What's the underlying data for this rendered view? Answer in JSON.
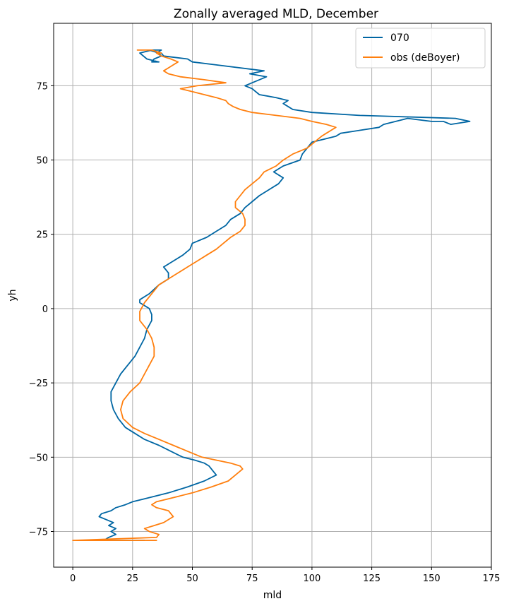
{
  "chart_data": {
    "type": "line",
    "title": "Zonally averaged MLD, December",
    "xlabel": "mld",
    "ylabel": "yh",
    "xlim": [
      -8,
      175
    ],
    "ylim": [
      -87,
      96
    ],
    "xticks": [
      0,
      25,
      50,
      75,
      100,
      125,
      150,
      175
    ],
    "yticks": [
      -75,
      -50,
      -25,
      0,
      25,
      50,
      75
    ],
    "xtick_labels": [
      "0",
      "25",
      "50",
      "75",
      "100",
      "125",
      "150",
      "175"
    ],
    "ytick_labels": [
      "−75",
      "−50",
      "−25",
      "0",
      "25",
      "50",
      "75"
    ],
    "grid": true,
    "legend_position": "top-right",
    "series": [
      {
        "name": "070",
        "color": "#0066a3",
        "x": [
          30,
          13,
          15,
          18,
          16,
          18,
          15,
          17,
          14,
          11,
          12,
          16,
          18,
          22,
          25,
          30,
          40,
          48,
          55,
          60,
          59,
          57,
          55,
          51,
          46,
          41,
          36,
          30,
          26,
          22,
          19,
          17,
          16,
          16,
          18,
          20,
          23,
          26,
          28,
          30,
          31,
          33,
          33,
          32,
          30,
          28,
          28,
          32,
          36,
          40,
          40,
          38,
          42,
          46,
          49,
          50,
          56,
          60,
          64,
          66,
          70,
          72,
          75,
          78,
          82,
          86,
          88,
          84,
          88,
          95,
          96,
          98,
          100,
          105,
          110,
          112,
          120,
          128,
          130,
          135,
          140,
          150,
          155,
          158,
          166,
          160,
          120,
          100,
          92,
          90,
          88,
          90,
          85,
          78,
          75,
          72,
          78,
          81,
          74,
          80,
          60,
          50,
          48,
          38,
          37,
          35,
          37,
          32,
          36,
          37,
          34,
          33,
          36,
          31,
          28,
          33
        ],
        "y": [
          -78,
          -78,
          -77,
          -76,
          -75,
          -74,
          -73,
          -72,
          -71,
          -70,
          -69,
          -68,
          -67,
          -66,
          -65,
          -64,
          -62,
          -60,
          -58,
          -56,
          -55,
          -53,
          -52,
          -51,
          -50,
          -48,
          -46,
          -44,
          -42,
          -40,
          -37,
          -34,
          -31,
          -28,
          -25,
          -22,
          -19,
          -16,
          -13,
          -10,
          -7,
          -4,
          -2,
          0,
          1,
          2,
          3,
          5,
          8,
          10,
          12,
          14,
          16,
          18,
          20,
          22,
          24,
          26,
          28,
          30,
          32,
          34,
          36,
          38,
          40,
          42,
          44,
          46,
          48,
          50,
          52,
          54,
          56,
          57,
          58,
          59,
          60,
          61,
          62,
          63,
          64,
          63,
          63,
          62,
          63,
          64,
          65,
          66,
          67,
          68,
          69,
          70,
          71,
          72,
          74,
          75,
          77,
          78,
          79,
          80,
          82,
          83,
          84,
          85,
          86,
          86,
          87,
          87,
          86,
          85,
          84,
          83,
          83,
          84,
          86,
          87
        ]
      },
      {
        "name": "obs (deBoyer)",
        "color": "#ff7f0e",
        "x": [
          35,
          0,
          35,
          36,
          32,
          30,
          34,
          38,
          42,
          40,
          35,
          33,
          35,
          40,
          50,
          58,
          65,
          68,
          71,
          70,
          66,
          60,
          54,
          48,
          42,
          36,
          30,
          25,
          21,
          20,
          21,
          24,
          28,
          30,
          32,
          34,
          34,
          33,
          31,
          28,
          28,
          30,
          33,
          36,
          40,
          44,
          48,
          52,
          56,
          60,
          63,
          66,
          70,
          72,
          72,
          71,
          68,
          68,
          70,
          72,
          75,
          78,
          80,
          85,
          88,
          92,
          98,
          101,
          104,
          106,
          108,
          110,
          106,
          100,
          95,
          85,
          75,
          70,
          67,
          65,
          64,
          60,
          55,
          50,
          45,
          52,
          64,
          55,
          45,
          40,
          38,
          40,
          42,
          44,
          41,
          37,
          35,
          37,
          33,
          30,
          27
        ],
        "y": [
          -78,
          -78,
          -77,
          -76,
          -75,
          -74,
          -73,
          -72,
          -70,
          -68,
          -67,
          -66,
          -65,
          -64,
          -62,
          -60,
          -58,
          -56,
          -54,
          -53,
          -52,
          -51,
          -50,
          -48,
          -46,
          -44,
          -42,
          -40,
          -37,
          -34,
          -31,
          -28,
          -25,
          -22,
          -19,
          -16,
          -13,
          -10,
          -7,
          -4,
          -1,
          2,
          5,
          8,
          10,
          12,
          14,
          16,
          18,
          20,
          22,
          24,
          26,
          28,
          30,
          32,
          34,
          36,
          38,
          40,
          42,
          44,
          46,
          48,
          50,
          52,
          54,
          56,
          58,
          59,
          60,
          61,
          62,
          63,
          64,
          65,
          66,
          67,
          68,
          69,
          70,
          71,
          72,
          73,
          74,
          75,
          76,
          77,
          78,
          79,
          80,
          81,
          82,
          83,
          84,
          85,
          86,
          86,
          87,
          87,
          87
        ]
      }
    ]
  }
}
